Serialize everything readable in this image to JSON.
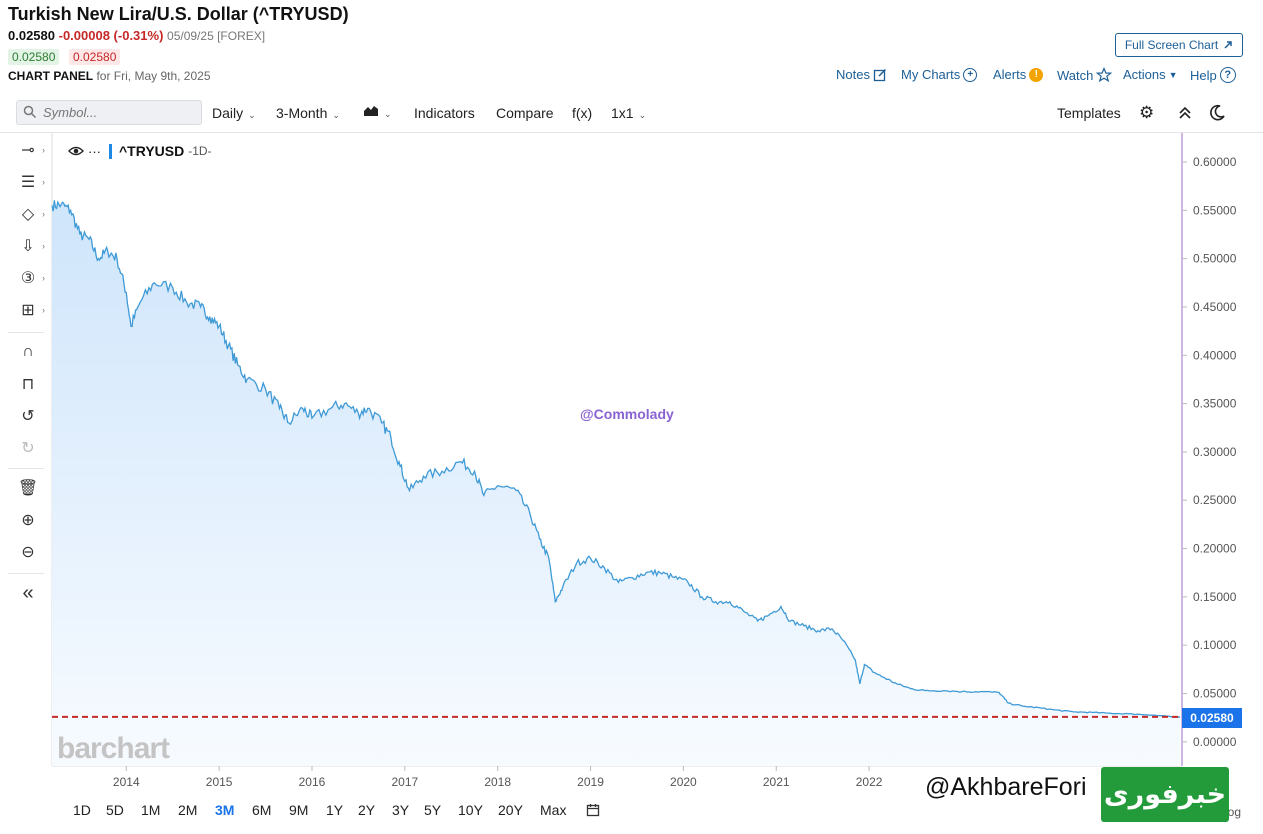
{
  "header": {
    "title": "Turkish New Lira/U.S. Dollar (^TRYUSD)",
    "last_price": "0.02580",
    "change": "-0.00008 (-0.31%)",
    "quote_meta": "05/09/25 [FOREX]",
    "bid": "0.02580",
    "ask": "0.02580",
    "panel_label": "CHART PANEL",
    "panel_date": "for Fri, May 9th, 2025",
    "fullscreen_label": "Full Screen Chart",
    "links": {
      "notes": "Notes",
      "my_charts": "My Charts",
      "alerts": "Alerts",
      "watch": "Watch",
      "actions": "Actions",
      "help": "Help"
    }
  },
  "toolbar": {
    "symbol_placeholder": "Symbol...",
    "interval": "Daily",
    "range": "3-Month",
    "indicators": "Indicators",
    "compare": "Compare",
    "fx": "f(x)",
    "layout": "1x1",
    "templates": "Templates"
  },
  "chart_panel": {
    "series_label": "^TRYUSD",
    "series_interval": "-1D-",
    "watermark": "@Commolady",
    "brand": "barchart",
    "last_price_badge": "0.02580"
  },
  "footer": {
    "periods": [
      "1D",
      "5D",
      "1M",
      "2M",
      "3M",
      "6M",
      "9M",
      "1Y",
      "2Y",
      "3Y",
      "5Y",
      "10Y",
      "20Y",
      "Max"
    ],
    "active_period": "3M",
    "handle": "@AkhbareFori",
    "logo_text": "خبرفوری",
    "corner_label": "% log"
  },
  "colors": {
    "line": "#3f9ad6",
    "area_top": "#cfe5fb",
    "reference_line": "#c62828",
    "accent": "#1a73e8",
    "logo_green": "#239b3a"
  },
  "chart_data": {
    "type": "area",
    "title": "Turkish New Lira/U.S. Dollar (^TRYUSD)",
    "xlabel": "",
    "ylabel": "",
    "x_ticks": [
      "2014",
      "2015",
      "2016",
      "2017",
      "2018",
      "2019",
      "2020",
      "2021",
      "2022"
    ],
    "y_ticks": [
      "0.60000",
      "0.55000",
      "0.50000",
      "0.45000",
      "0.40000",
      "0.35000",
      "0.30000",
      "0.25000",
      "0.20000",
      "0.15000",
      "0.10000",
      "0.05000",
      "0.00000"
    ],
    "xlim": [
      2013.2,
      2025.37
    ],
    "ylim": [
      -0.025,
      0.63
    ],
    "grid": false,
    "reference_line": {
      "value": 0.0258,
      "style": "dashed"
    },
    "series": [
      {
        "values": [
          [
            2013.2,
            0.555
          ],
          [
            2013.3,
            0.556
          ],
          [
            2013.4,
            0.55
          ],
          [
            2013.5,
            0.525
          ],
          [
            2013.6,
            0.52
          ],
          [
            2013.7,
            0.5
          ],
          [
            2013.8,
            0.508
          ],
          [
            2013.9,
            0.5
          ],
          [
            2014.0,
            0.465
          ],
          [
            2014.05,
            0.43
          ],
          [
            2014.15,
            0.455
          ],
          [
            2014.3,
            0.475
          ],
          [
            2014.5,
            0.47
          ],
          [
            2014.65,
            0.455
          ],
          [
            2014.8,
            0.45
          ],
          [
            2014.9,
            0.44
          ],
          [
            2015.0,
            0.43
          ],
          [
            2015.1,
            0.41
          ],
          [
            2015.2,
            0.39
          ],
          [
            2015.3,
            0.375
          ],
          [
            2015.5,
            0.365
          ],
          [
            2015.65,
            0.345
          ],
          [
            2015.75,
            0.33
          ],
          [
            2015.9,
            0.345
          ],
          [
            2016.0,
            0.335
          ],
          [
            2016.2,
            0.345
          ],
          [
            2016.35,
            0.35
          ],
          [
            2016.5,
            0.34
          ],
          [
            2016.6,
            0.345
          ],
          [
            2016.75,
            0.33
          ],
          [
            2016.85,
            0.315
          ],
          [
            2016.95,
            0.285
          ],
          [
            2017.05,
            0.26
          ],
          [
            2017.2,
            0.275
          ],
          [
            2017.4,
            0.28
          ],
          [
            2017.6,
            0.29
          ],
          [
            2017.75,
            0.28
          ],
          [
            2017.85,
            0.255
          ],
          [
            2018.0,
            0.265
          ],
          [
            2018.2,
            0.26
          ],
          [
            2018.35,
            0.235
          ],
          [
            2018.45,
            0.21
          ],
          [
            2018.55,
            0.19
          ],
          [
            2018.62,
            0.145
          ],
          [
            2018.7,
            0.16
          ],
          [
            2018.85,
            0.185
          ],
          [
            2019.0,
            0.19
          ],
          [
            2019.15,
            0.18
          ],
          [
            2019.3,
            0.165
          ],
          [
            2019.45,
            0.17
          ],
          [
            2019.6,
            0.175
          ],
          [
            2019.75,
            0.175
          ],
          [
            2019.9,
            0.17
          ],
          [
            2020.05,
            0.165
          ],
          [
            2020.2,
            0.15
          ],
          [
            2020.35,
            0.145
          ],
          [
            2020.5,
            0.145
          ],
          [
            2020.65,
            0.135
          ],
          [
            2020.8,
            0.125
          ],
          [
            2020.9,
            0.13
          ],
          [
            2021.05,
            0.14
          ],
          [
            2021.15,
            0.125
          ],
          [
            2021.3,
            0.12
          ],
          [
            2021.45,
            0.115
          ],
          [
            2021.6,
            0.117
          ],
          [
            2021.72,
            0.105
          ],
          [
            2021.85,
            0.085
          ],
          [
            2021.9,
            0.06
          ],
          [
            2021.95,
            0.08
          ],
          [
            2022.05,
            0.072
          ],
          [
            2022.15,
            0.067
          ],
          [
            2022.3,
            0.06
          ],
          [
            2022.45,
            0.055
          ],
          [
            2022.6,
            0.053
          ],
          [
            2022.8,
            0.053
          ],
          [
            2023.0,
            0.052
          ],
          [
            2023.2,
            0.052
          ],
          [
            2023.4,
            0.051
          ],
          [
            2023.5,
            0.04
          ],
          [
            2023.65,
            0.037
          ],
          [
            2023.85,
            0.035
          ],
          [
            2024.0,
            0.033
          ],
          [
            2024.2,
            0.031
          ],
          [
            2024.4,
            0.0305
          ],
          [
            2024.6,
            0.0295
          ],
          [
            2024.8,
            0.029
          ],
          [
            2025.0,
            0.028
          ],
          [
            2025.15,
            0.027
          ],
          [
            2025.25,
            0.026
          ],
          [
            2025.35,
            0.0258
          ]
        ]
      }
    ]
  }
}
